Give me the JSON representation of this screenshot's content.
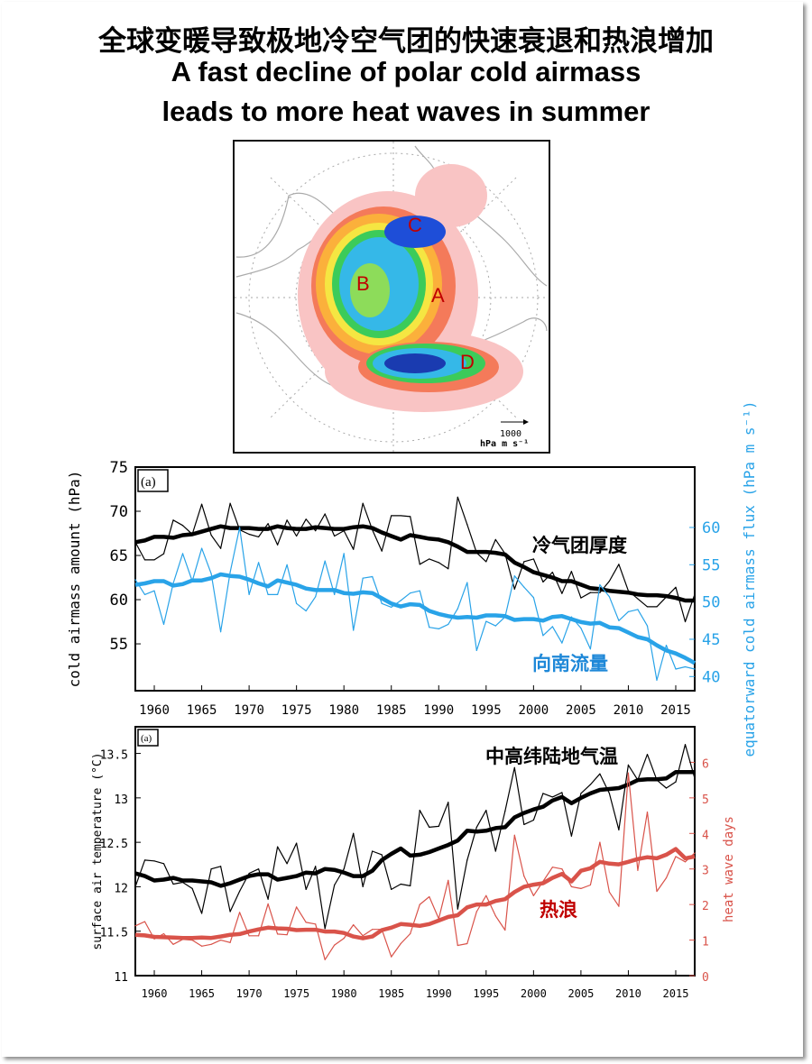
{
  "title": {
    "chinese": "全球变暖导致极地冷空气团的快速衰退和热浪增加",
    "english_line1": "A fast decline of polar cold airmass",
    "english_line2": "leads to more heat waves in summer"
  },
  "map": {
    "region_labels": [
      "A",
      "B",
      "C",
      "D"
    ],
    "reference_vector_value": "1000",
    "reference_vector_unit": "hPa m s⁻¹",
    "label_color": "#c00000"
  },
  "chart_data": [
    {
      "type": "line",
      "panel_label": "(a)",
      "x": [
        1958,
        1959,
        1960,
        1961,
        1962,
        1963,
        1964,
        1965,
        1966,
        1967,
        1968,
        1969,
        1970,
        1971,
        1972,
        1973,
        1974,
        1975,
        1976,
        1977,
        1978,
        1979,
        1980,
        1981,
        1982,
        1983,
        1984,
        1985,
        1986,
        1987,
        1988,
        1989,
        1990,
        1991,
        1992,
        1993,
        1994,
        1995,
        1996,
        1997,
        1998,
        1999,
        2000,
        2001,
        2002,
        2003,
        2004,
        2005,
        2006,
        2007,
        2008,
        2009,
        2010,
        2011,
        2012,
        2013,
        2014,
        2015,
        2016,
        2017
      ],
      "xlim": [
        1958,
        2017
      ],
      "xticks": [
        1960,
        1965,
        1970,
        1975,
        1980,
        1985,
        1990,
        1995,
        2000,
        2005,
        2010,
        2015
      ],
      "ylabel_left": "cold airmass amount (hPa)",
      "ylim_left": [
        49.7,
        75
      ],
      "yticks_left": [
        55,
        60,
        65,
        70,
        75
      ],
      "ylabel_right": "equatorward cold airmass flux (hPa m s⁻¹)",
      "ylim_right": [
        38.1,
        68.1
      ],
      "yticks_right": [
        40,
        45,
        50,
        55,
        60
      ],
      "series": [
        {
          "name": "冷气团厚度",
          "axis": "left",
          "color": "#000000",
          "style": "thin",
          "values": [
            66.5,
            64.5,
            64.5,
            65.2,
            69.0,
            68.4,
            67.4,
            70.8,
            67.3,
            65.8,
            70.9,
            67.9,
            67.4,
            67.1,
            68.6,
            66.2,
            69.0,
            67.2,
            69.1,
            67.8,
            69.7,
            67.2,
            67.8,
            65.7,
            70.9,
            67.9,
            65.5,
            69.5,
            69.5,
            69.4,
            64.0,
            64.6,
            64.2,
            63.5,
            71.6,
            68.5,
            65.3,
            64.3,
            66.8,
            65.2,
            61.2,
            64.3,
            64.6,
            62.0,
            63.1,
            60.7,
            63.2,
            60.2,
            60.8,
            60.8,
            62.1,
            64.0,
            61.0,
            60.1,
            59.2,
            59.2,
            60.3,
            61.4,
            57.5,
            60.6
          ]
        },
        {
          "name": "冷气团厚度",
          "axis": "left",
          "color": "#000000",
          "style": "smoothed",
          "values": [
            66.5,
            66.7,
            67.1,
            67.1,
            67.0,
            67.3,
            67.4,
            67.7,
            68.0,
            68.3,
            68.1,
            68.1,
            68.1,
            68.0,
            68.0,
            68.3,
            68.1,
            68.0,
            68.0,
            68.2,
            68.1,
            68.0,
            68.0,
            68.2,
            68.3,
            68.1,
            67.6,
            67.2,
            66.8,
            67.3,
            67.1,
            66.9,
            66.8,
            66.5,
            66.0,
            65.4,
            65.4,
            65.4,
            65.3,
            65.1,
            64.2,
            63.7,
            63.1,
            62.8,
            62.5,
            62.1,
            62.1,
            61.7,
            61.3,
            61.2,
            61.0,
            60.9,
            60.8,
            60.6,
            60.5,
            60.5,
            60.4,
            60.2,
            59.9,
            59.9
          ]
        },
        {
          "name": "向南流量",
          "axis": "right",
          "color": "#29a3e8",
          "style": "thin",
          "values": [
            53.0,
            51.0,
            51.5,
            47.0,
            52.5,
            56.5,
            52.8,
            57.2,
            53.8,
            46.0,
            54.0,
            60.0,
            51.0,
            55.3,
            51.0,
            51.0,
            55.0,
            49.8,
            48.8,
            50.7,
            55.5,
            51.0,
            56.5,
            46.2,
            53.2,
            53.4,
            49.8,
            49.3,
            50.2,
            51.2,
            51.5,
            46.6,
            46.4,
            47.0,
            49.1,
            52.6,
            43.5,
            47.4,
            46.8,
            48.0,
            53.5,
            52.0,
            50.6,
            45.5,
            46.7,
            44.5,
            48.0,
            46.5,
            43.7,
            52.3,
            50.7,
            47.5,
            48.7,
            49.0,
            46.8,
            39.5,
            44.2,
            41.0,
            41.3,
            41.0
          ]
        },
        {
          "name": "向南流量",
          "axis": "right",
          "color": "#29a3e8",
          "style": "smoothed",
          "values": [
            52.3,
            52.5,
            52.8,
            52.8,
            52.2,
            52.4,
            52.9,
            52.9,
            53.2,
            53.7,
            53.5,
            53.4,
            53.0,
            52.5,
            52.1,
            52.9,
            52.6,
            52.3,
            51.8,
            51.6,
            51.6,
            51.6,
            51.2,
            51.1,
            51.3,
            51.2,
            50.5,
            49.8,
            49.4,
            49.7,
            49.6,
            48.8,
            48.4,
            48.1,
            47.9,
            48.0,
            47.9,
            48.2,
            48.2,
            48.1,
            47.6,
            47.7,
            47.7,
            47.5,
            48.0,
            48.1,
            47.7,
            47.3,
            47.1,
            47.2,
            46.6,
            46.5,
            45.9,
            45.3,
            45.0,
            44.2,
            43.5,
            43.1,
            42.5,
            41.8
          ]
        }
      ],
      "annotations": [
        {
          "text": "冷气团厚度",
          "color": "#000000"
        },
        {
          "text": "向南流量",
          "color": "#1e88d8"
        }
      ]
    },
    {
      "type": "line",
      "panel_label": "(a)",
      "x": [
        1958,
        1959,
        1960,
        1961,
        1962,
        1963,
        1964,
        1965,
        1966,
        1967,
        1968,
        1969,
        1970,
        1971,
        1972,
        1973,
        1974,
        1975,
        1976,
        1977,
        1978,
        1979,
        1980,
        1981,
        1982,
        1983,
        1984,
        1985,
        1986,
        1987,
        1988,
        1989,
        1990,
        1991,
        1992,
        1993,
        1994,
        1995,
        1996,
        1997,
        1998,
        1999,
        2000,
        2001,
        2002,
        2003,
        2004,
        2005,
        2006,
        2007,
        2008,
        2009,
        2010,
        2011,
        2012,
        2013,
        2014,
        2015,
        2016,
        2017
      ],
      "xlim": [
        1958,
        2017
      ],
      "xticks": [
        1960,
        1965,
        1970,
        1975,
        1980,
        1985,
        1990,
        1995,
        2000,
        2005,
        2010,
        2015
      ],
      "ylabel_left": "surface air temperature (°C)",
      "ylim_left": [
        11,
        13.8
      ],
      "yticks_left": [
        "11",
        "11.5",
        "12",
        "12.5",
        "13",
        "13.5"
      ],
      "ylabel_right": "heat wave days",
      "ylim_right": [
        0,
        7
      ],
      "yticks_right": [
        0,
        1,
        2,
        3,
        4,
        5,
        6
      ],
      "series": [
        {
          "name": "中高纬陆地气温",
          "axis": "left",
          "color": "#000000",
          "style": "thin",
          "values": [
            12.0,
            12.3,
            12.29,
            12.26,
            12.03,
            12.05,
            11.98,
            11.7,
            12.2,
            12.23,
            11.72,
            11.95,
            12.15,
            12.2,
            11.86,
            12.45,
            12.26,
            12.49,
            11.97,
            12.23,
            11.53,
            12.02,
            12.2,
            12.6,
            12.0,
            12.4,
            12.36,
            11.97,
            12.03,
            12.01,
            12.86,
            12.67,
            12.68,
            12.95,
            11.75,
            12.3,
            12.67,
            12.86,
            12.4,
            12.85,
            13.34,
            12.7,
            12.75,
            13.05,
            13.01,
            13.06,
            12.57,
            13.05,
            13.15,
            13.27,
            13.05,
            12.64,
            13.37,
            13.2,
            13.49,
            13.2,
            13.11,
            13.18,
            13.6,
            13.22
          ]
        },
        {
          "name": "中高纬陆地气温",
          "axis": "left",
          "color": "#000000",
          "style": "smoothed",
          "values": [
            12.15,
            12.12,
            12.07,
            12.08,
            12.1,
            12.07,
            12.07,
            12.06,
            12.05,
            12.01,
            12.04,
            12.08,
            12.12,
            12.14,
            12.14,
            12.08,
            12.1,
            12.12,
            12.16,
            12.15,
            12.2,
            12.19,
            12.16,
            12.12,
            12.12,
            12.18,
            12.3,
            12.37,
            12.43,
            12.35,
            12.36,
            12.39,
            12.43,
            12.47,
            12.52,
            12.63,
            12.62,
            12.63,
            12.66,
            12.67,
            12.78,
            12.83,
            12.87,
            12.9,
            12.97,
            13.01,
            12.94,
            13.0,
            13.05,
            13.09,
            13.1,
            13.11,
            13.15,
            13.2,
            13.21,
            13.21,
            13.22,
            13.29,
            13.29,
            13.29
          ]
        },
        {
          "name": "热浪",
          "axis": "right",
          "color": "#d9534a",
          "style": "thin",
          "values": [
            1.4,
            1.52,
            1.03,
            1.18,
            0.88,
            1.02,
            1.0,
            0.83,
            0.88,
            1.0,
            0.93,
            1.78,
            1.12,
            1.12,
            2.02,
            1.17,
            1.15,
            1.93,
            1.5,
            1.45,
            0.45,
            0.86,
            1.05,
            1.43,
            1.12,
            1.3,
            1.3,
            0.53,
            0.9,
            1.18,
            2.0,
            2.22,
            1.6,
            2.68,
            0.85,
            0.9,
            1.8,
            2.25,
            1.68,
            1.28,
            3.95,
            2.8,
            2.25,
            2.65,
            3.05,
            3.0,
            2.5,
            2.45,
            2.55,
            3.75,
            2.35,
            1.95,
            5.7,
            2.96,
            4.6,
            2.37,
            2.75,
            3.35,
            3.2,
            3.45
          ]
        },
        {
          "name": "热浪",
          "axis": "right",
          "color": "#d9534a",
          "style": "smoothed",
          "values": [
            1.15,
            1.13,
            1.09,
            1.08,
            1.07,
            1.06,
            1.06,
            1.07,
            1.06,
            1.1,
            1.15,
            1.17,
            1.24,
            1.3,
            1.35,
            1.33,
            1.32,
            1.28,
            1.29,
            1.29,
            1.24,
            1.24,
            1.2,
            1.1,
            1.05,
            1.1,
            1.28,
            1.35,
            1.45,
            1.43,
            1.4,
            1.45,
            1.55,
            1.65,
            1.7,
            1.92,
            2.0,
            2.0,
            2.1,
            2.15,
            2.35,
            2.5,
            2.56,
            2.6,
            2.75,
            2.86,
            2.65,
            2.95,
            3.02,
            3.2,
            3.15,
            3.13,
            3.2,
            3.28,
            3.33,
            3.3,
            3.4,
            3.56,
            3.3,
            3.35
          ]
        }
      ],
      "annotations": [
        {
          "text": "中高纬陆地气温",
          "color": "#000000"
        },
        {
          "text": "热浪",
          "color": "#c00000"
        }
      ]
    }
  ]
}
